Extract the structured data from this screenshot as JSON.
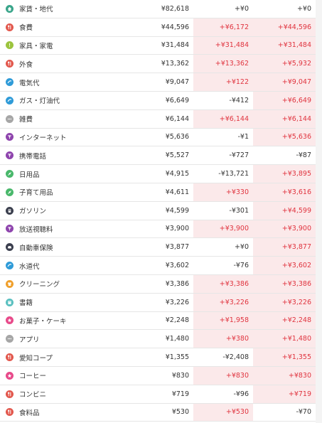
{
  "colors": {
    "increase_text": "#e0343f",
    "increase_bg": "#fbe9ea",
    "text": "#333333"
  },
  "rows": [
    {
      "category": "家賃・地代",
      "icon": "home-icon",
      "icon_color": "#3aa58a",
      "amount": "¥82,618",
      "diff_prev": "+¥0",
      "diff_prev_up": false,
      "diff_avg": "+¥0",
      "diff_avg_up": false
    },
    {
      "category": "食費",
      "icon": "fork-knife-icon",
      "icon_color": "#e2574c",
      "amount": "¥44,596",
      "diff_prev": "+¥6,172",
      "diff_prev_up": true,
      "diff_avg": "+¥44,596",
      "diff_avg_up": true
    },
    {
      "category": "家具・家電",
      "icon": "info-icon",
      "icon_color": "#9cc43e",
      "amount": "¥31,484",
      "diff_prev": "+¥31,484",
      "diff_prev_up": true,
      "diff_avg": "+¥31,484",
      "diff_avg_up": true
    },
    {
      "category": "外食",
      "icon": "fork-knife-icon",
      "icon_color": "#e2574c",
      "amount": "¥13,362",
      "diff_prev": "+¥13,362",
      "diff_prev_up": true,
      "diff_avg": "+¥5,932",
      "diff_avg_up": true
    },
    {
      "category": "電気代",
      "icon": "utility-icon",
      "icon_color": "#2f9bd8",
      "amount": "¥9,047",
      "diff_prev": "+¥122",
      "diff_prev_up": true,
      "diff_avg": "+¥9,047",
      "diff_avg_up": true
    },
    {
      "category": "ガス・灯油代",
      "icon": "utility-icon",
      "icon_color": "#2f9bd8",
      "amount": "¥6,649",
      "diff_prev": "-¥412",
      "diff_prev_up": false,
      "diff_avg": "+¥6,649",
      "diff_avg_up": true
    },
    {
      "category": "雑費",
      "icon": "more-icon",
      "icon_color": "#a6a6a6",
      "amount": "¥6,144",
      "diff_prev": "+¥6,144",
      "diff_prev_up": true,
      "diff_avg": "+¥6,144",
      "diff_avg_up": true
    },
    {
      "category": "インターネット",
      "icon": "antenna-icon",
      "icon_color": "#8e44ad",
      "amount": "¥5,636",
      "diff_prev": "-¥1",
      "diff_prev_up": false,
      "diff_avg": "+¥5,636",
      "diff_avg_up": true
    },
    {
      "category": "携帯電話",
      "icon": "antenna-icon",
      "icon_color": "#8e44ad",
      "amount": "¥5,527",
      "diff_prev": "-¥727",
      "diff_prev_up": false,
      "diff_avg": "-¥87",
      "diff_avg_up": false
    },
    {
      "category": "日用品",
      "icon": "leaf-icon",
      "icon_color": "#49b86b",
      "amount": "¥4,915",
      "diff_prev": "-¥13,721",
      "diff_prev_up": false,
      "diff_avg": "+¥3,895",
      "diff_avg_up": true
    },
    {
      "category": "子育て用品",
      "icon": "leaf-icon",
      "icon_color": "#49b86b",
      "amount": "¥4,611",
      "diff_prev": "+¥330",
      "diff_prev_up": true,
      "diff_avg": "+¥3,616",
      "diff_avg_up": true
    },
    {
      "category": "ガソリン",
      "icon": "fuel-icon",
      "icon_color": "#3b3f4e",
      "amount": "¥4,599",
      "diff_prev": "-¥301",
      "diff_prev_up": false,
      "diff_avg": "+¥4,599",
      "diff_avg_up": true
    },
    {
      "category": "放送視聴料",
      "icon": "antenna-icon",
      "icon_color": "#8e44ad",
      "amount": "¥3,900",
      "diff_prev": "+¥3,900",
      "diff_prev_up": true,
      "diff_avg": "+¥3,900",
      "diff_avg_up": true
    },
    {
      "category": "自動車保険",
      "icon": "car-icon",
      "icon_color": "#3b3f4e",
      "amount": "¥3,877",
      "diff_prev": "+¥0",
      "diff_prev_up": false,
      "diff_avg": "+¥3,877",
      "diff_avg_up": true
    },
    {
      "category": "水道代",
      "icon": "utility-icon",
      "icon_color": "#2f9bd8",
      "amount": "¥3,602",
      "diff_prev": "-¥76",
      "diff_prev_up": false,
      "diff_avg": "+¥3,602",
      "diff_avg_up": true
    },
    {
      "category": "クリーニング",
      "icon": "shirt-icon",
      "icon_color": "#f0a02c",
      "amount": "¥3,386",
      "diff_prev": "+¥3,386",
      "diff_prev_up": true,
      "diff_avg": "+¥3,386",
      "diff_avg_up": true
    },
    {
      "category": "書籍",
      "icon": "book-icon",
      "icon_color": "#5ac0c0",
      "amount": "¥3,226",
      "diff_prev": "+¥3,226",
      "diff_prev_up": true,
      "diff_avg": "+¥3,226",
      "diff_avg_up": true
    },
    {
      "category": "お菓子・ケーキ",
      "icon": "star-icon",
      "icon_color": "#e84a8a",
      "amount": "¥2,248",
      "diff_prev": "+¥1,958",
      "diff_prev_up": true,
      "diff_avg": "+¥2,248",
      "diff_avg_up": true
    },
    {
      "category": "アプリ",
      "icon": "more-icon",
      "icon_color": "#a6a6a6",
      "amount": "¥1,480",
      "diff_prev": "+¥380",
      "diff_prev_up": true,
      "diff_avg": "+¥1,480",
      "diff_avg_up": true
    },
    {
      "category": "愛知コープ",
      "icon": "fork-knife-icon",
      "icon_color": "#e2574c",
      "amount": "¥1,355",
      "diff_prev": "-¥2,408",
      "diff_prev_up": false,
      "diff_avg": "+¥1,355",
      "diff_avg_up": true
    },
    {
      "category": "コーヒー",
      "icon": "star-icon",
      "icon_color": "#e84a8a",
      "amount": "¥830",
      "diff_prev": "+¥830",
      "diff_prev_up": true,
      "diff_avg": "+¥830",
      "diff_avg_up": true
    },
    {
      "category": "コンビニ",
      "icon": "fork-knife-icon",
      "icon_color": "#e2574c",
      "amount": "¥719",
      "diff_prev": "-¥96",
      "diff_prev_up": false,
      "diff_avg": "+¥719",
      "diff_avg_up": true
    },
    {
      "category": "食料品",
      "icon": "fork-knife-icon",
      "icon_color": "#e2574c",
      "amount": "¥530",
      "diff_prev": "+¥530",
      "diff_prev_up": true,
      "diff_avg": "-¥70",
      "diff_avg_up": false
    }
  ]
}
